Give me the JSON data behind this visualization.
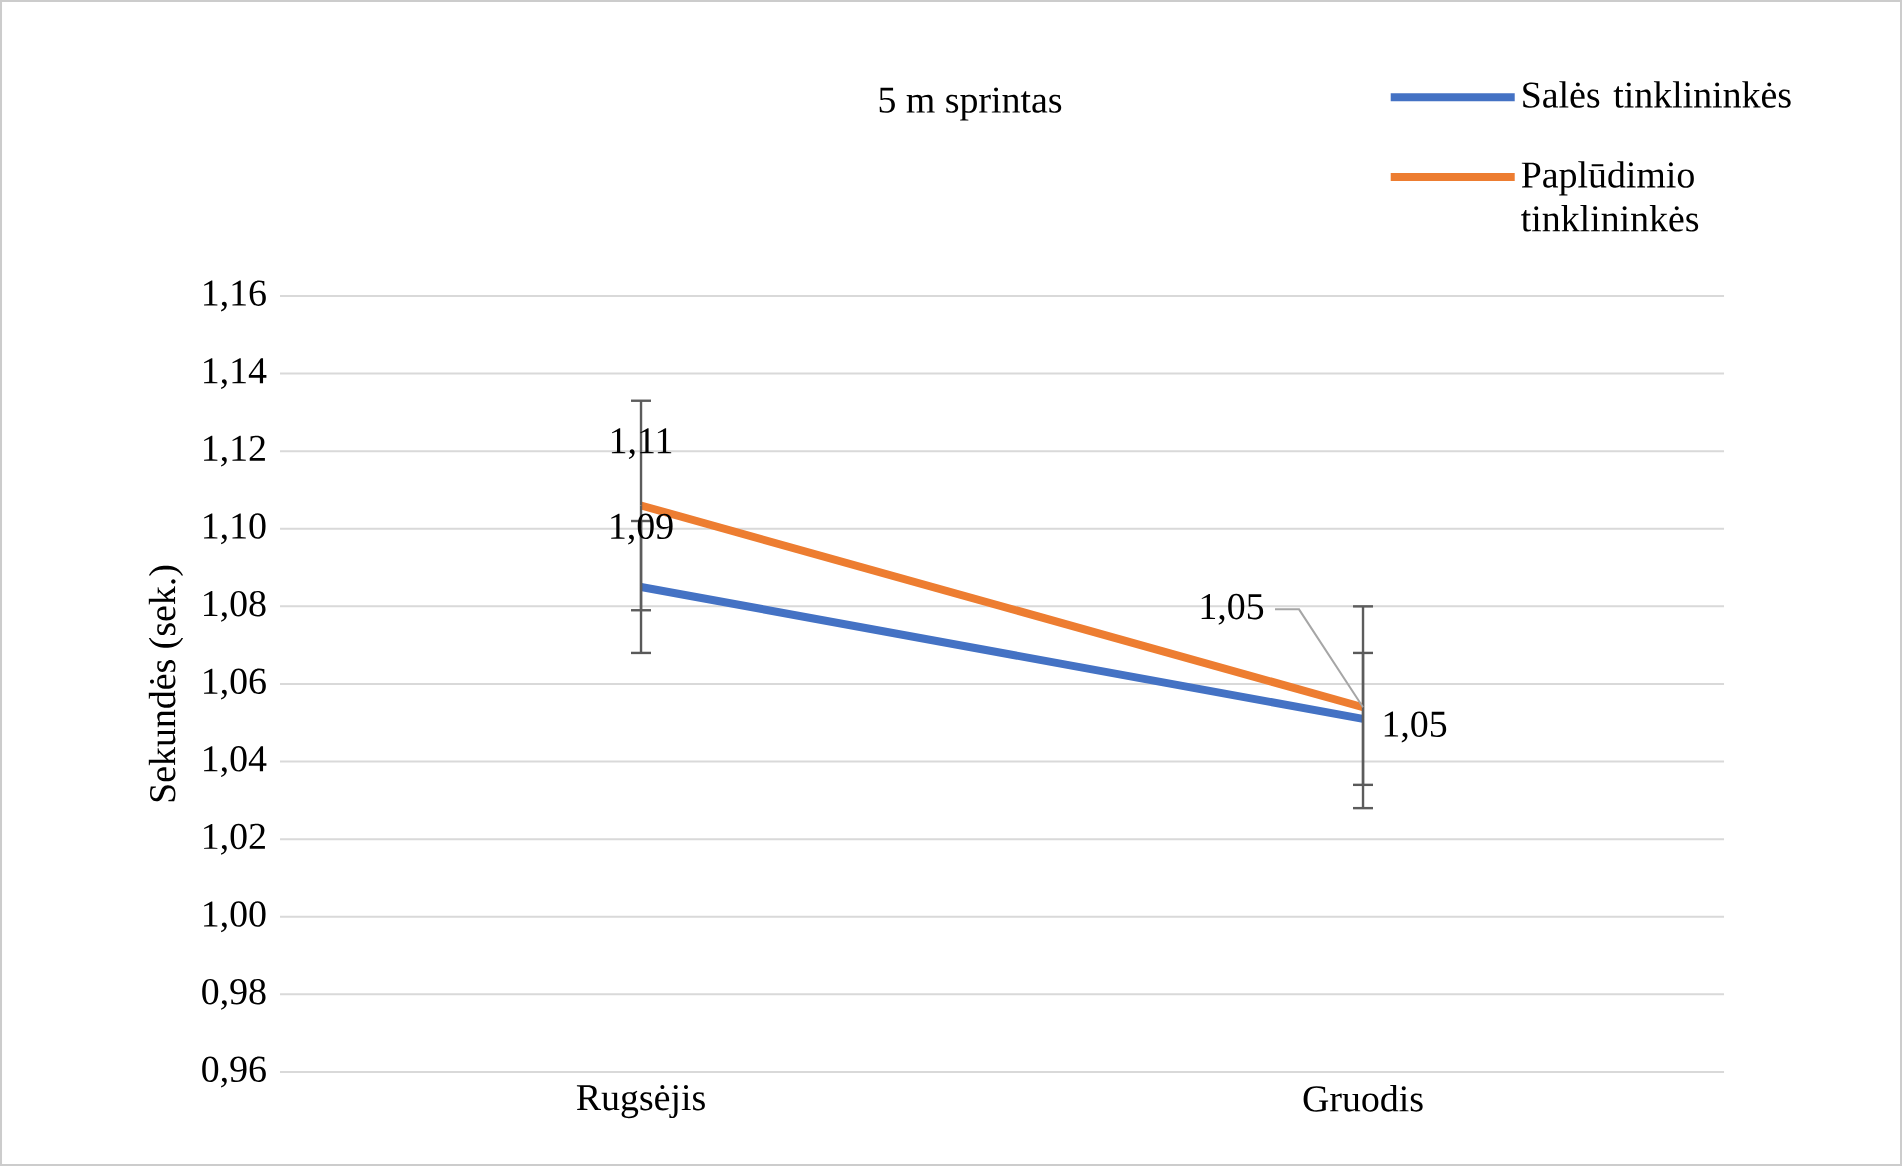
{
  "chart_data": {
    "type": "line",
    "title": "5 m sprintas",
    "ylabel": "Sekundės (sek.)",
    "categories": [
      "Rugsėjis",
      "Gruodis"
    ],
    "series": [
      {
        "name": "Salės tinklininkės",
        "color": "#4472c4",
        "values": [
          1.085,
          1.051
        ],
        "errors": [
          0.017,
          0.017
        ],
        "value_labels": [
          "1,09",
          "1,05"
        ]
      },
      {
        "name": "Paplūdimio tinklininkės",
        "color": "#ed7d31",
        "values": [
          1.106,
          1.054
        ],
        "errors": [
          0.027,
          0.026
        ],
        "value_labels": [
          "1,11",
          "1,05"
        ]
      }
    ],
    "ylim": [
      0.96,
      1.16
    ],
    "yticks": [
      {
        "value": 0.96,
        "label": "0,96"
      },
      {
        "value": 0.98,
        "label": "0,98"
      },
      {
        "value": 1.0,
        "label": "1,00"
      },
      {
        "value": 1.02,
        "label": "1,02"
      },
      {
        "value": 1.04,
        "label": "1,04"
      },
      {
        "value": 1.06,
        "label": "1,06"
      },
      {
        "value": 1.08,
        "label": "1,08"
      },
      {
        "value": 1.1,
        "label": "1,10"
      },
      {
        "value": 1.12,
        "label": "1,12"
      },
      {
        "value": 1.14,
        "label": "1,14"
      },
      {
        "value": 1.16,
        "label": "1,16"
      }
    ],
    "grid": "y",
    "legend": "top right",
    "marker": "none",
    "line_style": "solid"
  }
}
